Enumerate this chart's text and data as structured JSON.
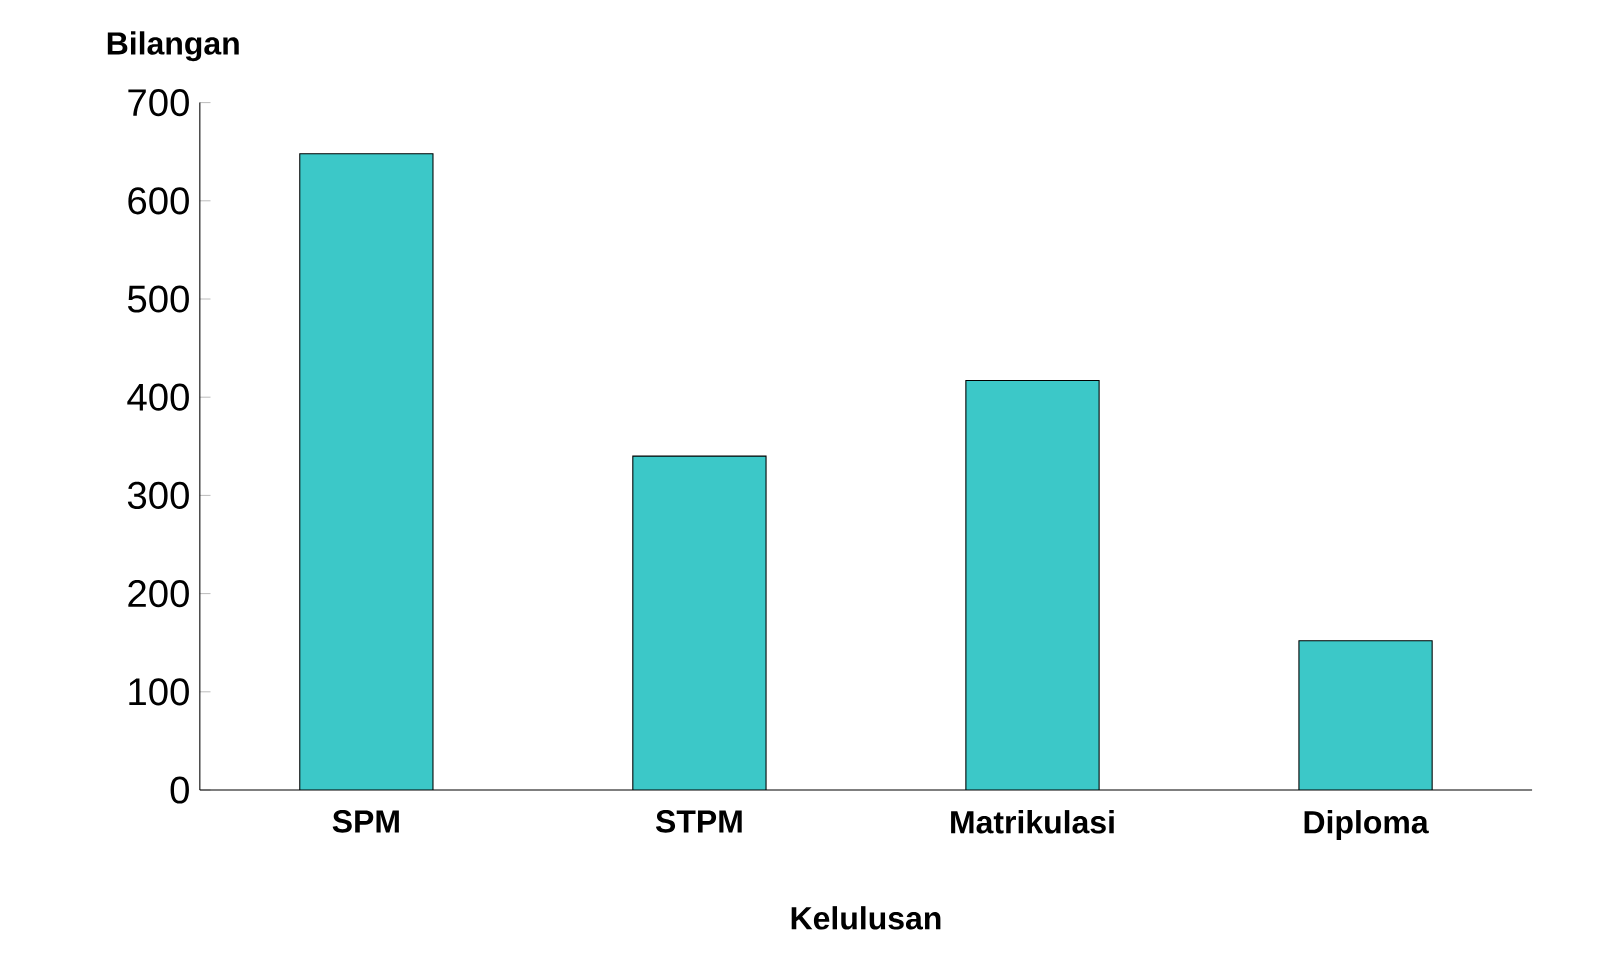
{
  "chart_data": {
    "type": "bar",
    "xlabel": "Kelulusan",
    "ylabel": "Bilangan",
    "categories": [
      "SPM",
      "STPM",
      "Matrikulasi",
      "Diploma"
    ],
    "values": [
      648,
      340,
      417,
      152
    ],
    "color": "#3cc8c8",
    "ylim": [
      0,
      700
    ],
    "yticks": [
      0,
      100,
      200,
      300,
      400,
      500,
      600,
      700
    ]
  }
}
